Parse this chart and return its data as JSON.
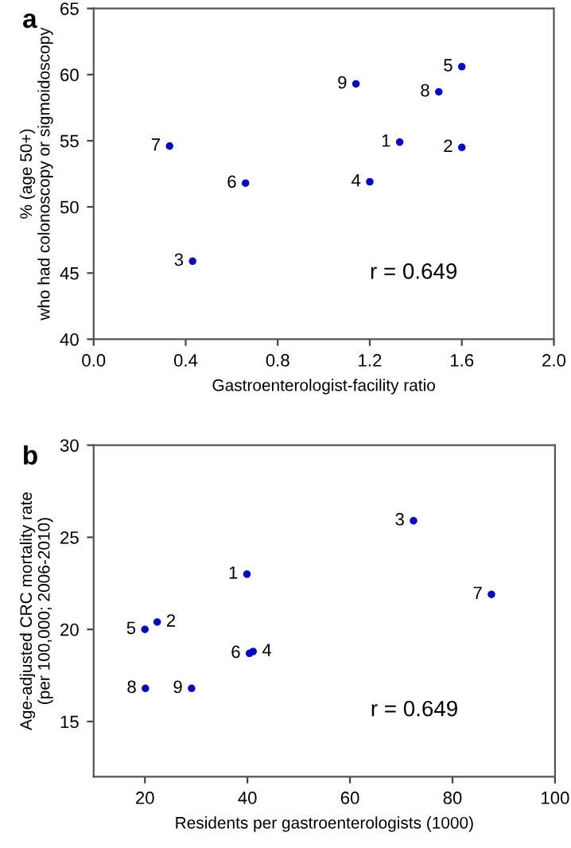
{
  "chart_data": [
    {
      "type": "scatter",
      "xlabel": "Gastroenterologist-facility ratio",
      "ylabel": "% (age 50+)\nwho had colonoscopy or sigmoidoscopy",
      "x": [
        1.33,
        1.6,
        0.43,
        1.2,
        1.6,
        0.66,
        0.33,
        1.5,
        1.14
      ],
      "series": [
        {
          "color": "#0a0ab4",
          "values": [
            54.9,
            54.5,
            45.9,
            51.9,
            60.6,
            51.8,
            54.6,
            58.7,
            59.3
          ]
        }
      ],
      "xlim": [
        0,
        2
      ],
      "xticks": [
        {
          "value": 0,
          "label": "0.0"
        },
        0.4,
        0.8,
        1.2,
        1.6,
        {
          "value": 2,
          "label": "2.0"
        }
      ],
      "ylim": [
        40,
        65
      ],
      "yticks": [
        40,
        45,
        50,
        55,
        60,
        65
      ],
      "marker": "circle",
      "grid": false,
      "annotations": [
        "a",
        "r = 0.649",
        {
          "text": "1",
          "x": 1.33,
          "y": 54.9
        },
        {
          "text": "2",
          "x": 1.6,
          "y": 54.5
        },
        {
          "text": "3",
          "x": 0.43,
          "y": 45.9
        },
        {
          "text": "4",
          "x": 1.2,
          "y": 51.9
        },
        {
          "text": "5",
          "x": 1.6,
          "y": 60.6
        },
        {
          "text": "6",
          "x": 0.66,
          "y": 51.8
        },
        {
          "text": "7",
          "x": 0.33,
          "y": 54.6
        },
        {
          "text": "8",
          "x": 1.5,
          "y": 58.7
        },
        {
          "text": "9",
          "x": 1.14,
          "y": 59.3
        }
      ]
    },
    {
      "type": "scatter",
      "xlabel": "Residents per gastroenterologists (1000)",
      "ylabel": "Age-adjusted CRC mortality rate\n(per 100,000; 2006-2010)",
      "x": [
        39.9,
        22.4,
        72.4,
        41.1,
        20.0,
        40.4,
        87.6,
        20.1,
        29.1
      ],
      "series": [
        {
          "color": "#0a0ab4",
          "values": [
            23.0,
            20.4,
            25.9,
            18.8,
            20.0,
            18.7,
            21.9,
            16.8,
            16.8
          ]
        }
      ],
      "xlim": [
        10,
        100
      ],
      "xticks": [
        20,
        40,
        60,
        80,
        100
      ],
      "ylim": [
        12,
        30
      ],
      "yticks": [
        15,
        20,
        25,
        30
      ],
      "marker": "circle",
      "grid": false,
      "annotations": [
        "b",
        "r = 0.649",
        {
          "text": "1",
          "x": 39.9,
          "y": 23.0
        },
        {
          "text": "2",
          "x": 22.4,
          "y": 20.4
        },
        {
          "text": "3",
          "x": 72.4,
          "y": 25.9
        },
        {
          "text": "4",
          "x": 41.1,
          "y": 18.8
        },
        {
          "text": "5",
          "x": 20.0,
          "y": 20.0
        },
        {
          "text": "6",
          "x": 40.4,
          "y": 18.7
        },
        {
          "text": "7",
          "x": 87.6,
          "y": 21.9
        },
        {
          "text": "8",
          "x": 20.1,
          "y": 16.8
        },
        {
          "text": "9",
          "x": 29.1,
          "y": 16.8
        }
      ]
    }
  ]
}
